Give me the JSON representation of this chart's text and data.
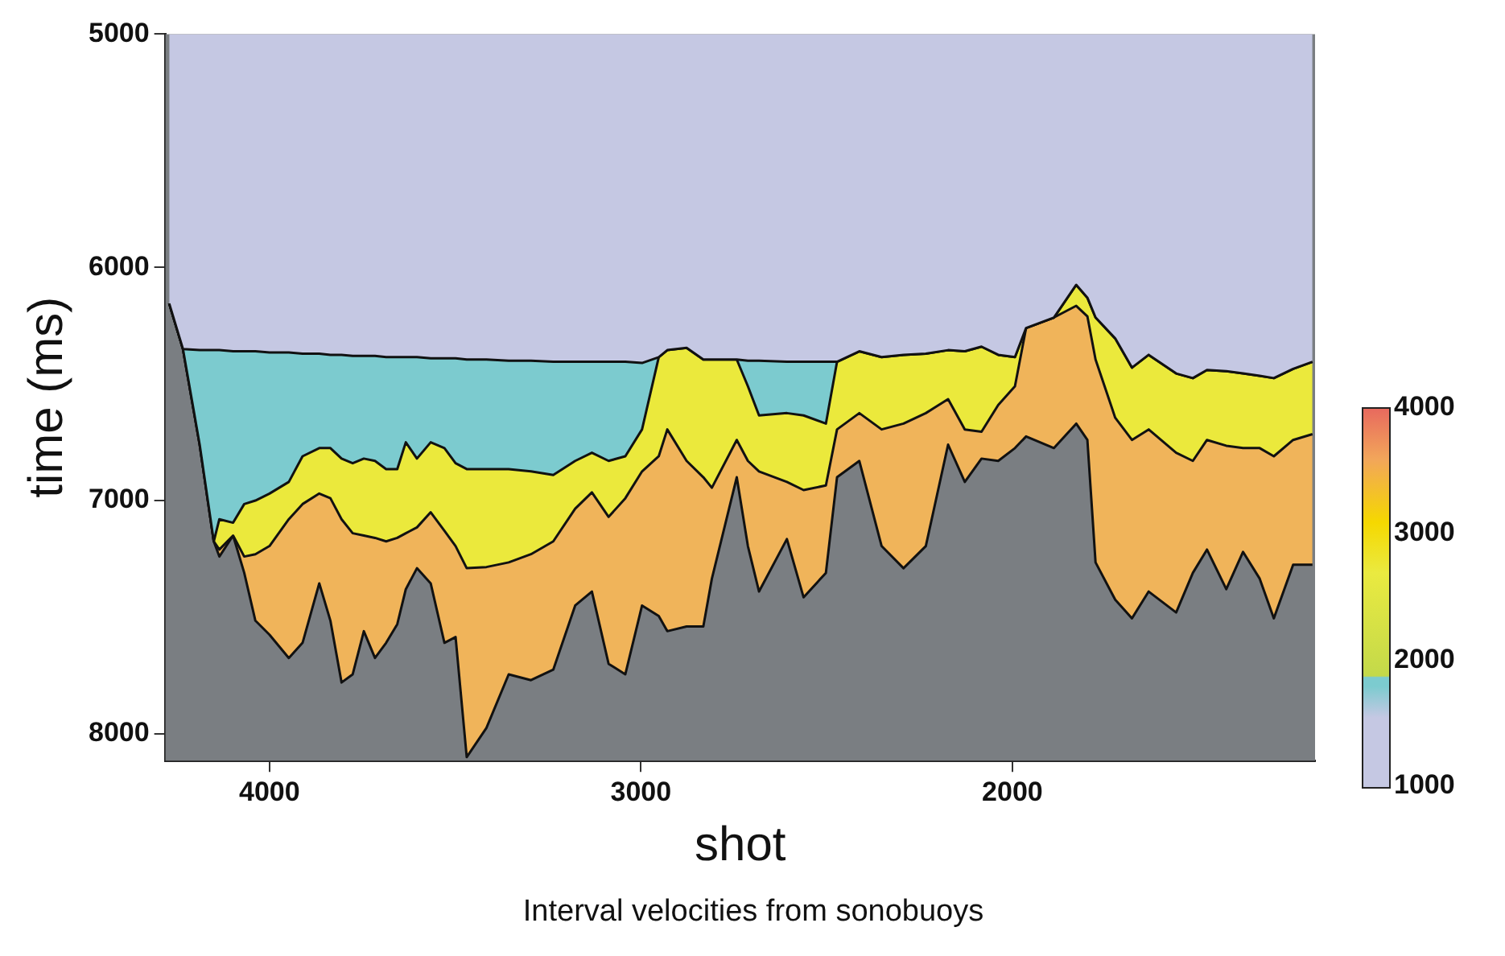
{
  "chart_data": {
    "type": "area",
    "xlabel": "shot",
    "ylabel": "time (ms)",
    "annotations": [
      "Interval velocities from sonobuoys"
    ],
    "x": [
      4270,
      4233,
      4188,
      4150,
      4135,
      4098,
      4068,
      4038,
      4000,
      3948,
      3911,
      3866,
      3836,
      3806,
      3776,
      3746,
      3716,
      3686,
      3656,
      3633,
      3603,
      3566,
      3529,
      3499,
      3469,
      3416,
      3356,
      3296,
      3236,
      3177,
      3132,
      3087,
      3042,
      2997,
      2952,
      2929,
      2877,
      2832,
      2809,
      2742,
      2712,
      2682,
      2607,
      2562,
      2502,
      2472,
      2412,
      2352,
      2293,
      2233,
      2173,
      2128,
      2083,
      2038,
      1993,
      1963,
      1888,
      1828,
      1798,
      1776,
      1723,
      1678,
      1633,
      1559,
      1514,
      1476,
      1424,
      1379,
      1334,
      1296,
      1244,
      1192
    ],
    "series": [
      {
        "color": "#c5c8e3",
        "values": [
          6155,
          6350,
          6355,
          6355,
          6355,
          6360,
          6360,
          6360,
          6365,
          6365,
          6370,
          6370,
          6375,
          6375,
          6380,
          6380,
          6380,
          6385,
          6385,
          6385,
          6385,
          6390,
          6390,
          6390,
          6395,
          6395,
          6400,
          6400,
          6405,
          6405,
          6405,
          6405,
          6405,
          6410,
          6385,
          6355,
          6345,
          6395,
          6395,
          6395,
          6400,
          6400,
          6405,
          6405,
          6405,
          6405,
          6360,
          6385,
          6375,
          6370,
          6355,
          6360,
          6340,
          6375,
          6385,
          6260,
          6215,
          6075,
          6130,
          6215,
          6305,
          6430,
          6375,
          6455,
          6475,
          6440,
          6445,
          6455,
          6465,
          6475,
          6435,
          6405
        ]
      },
      {
        "color": "#7ccbcf",
        "values": [
          6155,
          6350,
          6760,
          7175,
          7080,
          7095,
          7015,
          7000,
          6970,
          6920,
          6810,
          6775,
          6775,
          6820,
          6840,
          6820,
          6830,
          6865,
          6865,
          6750,
          6820,
          6750,
          6775,
          6840,
          6865,
          6865,
          6865,
          6875,
          6890,
          6830,
          6795,
          6830,
          6810,
          6695,
          6385,
          6355,
          6345,
          6395,
          6395,
          6395,
          6510,
          6635,
          6625,
          6635,
          6670,
          6405,
          6360,
          6385,
          6375,
          6370,
          6355,
          6360,
          6340,
          6375,
          6385,
          6260,
          6215,
          6075,
          6130,
          6215,
          6305,
          6430,
          6375,
          6455,
          6475,
          6440,
          6445,
          6455,
          6465,
          6475,
          6435,
          6405
        ]
      },
      {
        "color": "#ebe93c",
        "values": [
          6155,
          6350,
          6760,
          7175,
          7210,
          7150,
          7240,
          7230,
          7195,
          7080,
          7015,
          6970,
          6990,
          7080,
          7140,
          7150,
          7160,
          7175,
          7160,
          7140,
          7115,
          7050,
          7130,
          7195,
          7290,
          7285,
          7265,
          7230,
          7175,
          7035,
          6965,
          7070,
          6990,
          6875,
          6810,
          6695,
          6830,
          6900,
          6945,
          6740,
          6830,
          6875,
          6920,
          6955,
          6935,
          6695,
          6625,
          6695,
          6670,
          6625,
          6565,
          6695,
          6705,
          6590,
          6510,
          6260,
          6215,
          6165,
          6210,
          6395,
          6645,
          6740,
          6695,
          6795,
          6830,
          6740,
          6765,
          6775,
          6775,
          6810,
          6740,
          6715
        ]
      },
      {
        "color": "#f0b45a",
        "values": [
          6155,
          6350,
          6760,
          7175,
          7240,
          7150,
          7310,
          7515,
          7575,
          7675,
          7610,
          7355,
          7515,
          7780,
          7745,
          7560,
          7675,
          7610,
          7530,
          7380,
          7290,
          7355,
          7610,
          7585,
          8100,
          7975,
          7745,
          7770,
          7725,
          7450,
          7390,
          7700,
          7745,
          7450,
          7495,
          7560,
          7540,
          7540,
          7335,
          6900,
          7195,
          7390,
          7165,
          7415,
          7310,
          6900,
          6830,
          7195,
          7290,
          7195,
          6760,
          6920,
          6820,
          6830,
          6775,
          6725,
          6775,
          6670,
          6740,
          7265,
          7425,
          7505,
          7390,
          7480,
          7310,
          7210,
          7380,
          7220,
          7335,
          7505,
          7275,
          7275
        ]
      }
    ],
    "xlim": [
      4280,
      1185
    ],
    "xticks": [
      4000,
      3000,
      2000
    ],
    "ylim": [
      8115,
      5000
    ],
    "yticks": [
      5000,
      6000,
      7000,
      8000
    ],
    "clim": [
      1000,
      4000
    ],
    "cticks": [
      1000,
      2000,
      3000,
      4000
    ],
    "grid": false,
    "legend": false
  }
}
